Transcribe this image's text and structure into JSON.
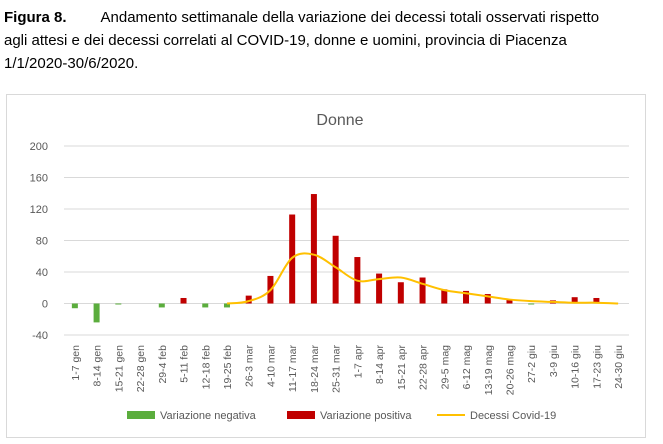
{
  "caption": {
    "figure_label": "Figura 8.",
    "line1": "Andamento settimanale della variazione dei decessi totali osservati rispetto",
    "line2": "agli attesi e dei decessi correlati al COVID-19, donne e uomini, provincia di Piacenza",
    "line3": "1/1/2020-30/6/2020."
  },
  "chart_data": {
    "type": "bar",
    "title": "Donne",
    "xlabel": "",
    "ylabel": "",
    "ylim": [
      -40,
      200
    ],
    "yticks": [
      -40,
      0,
      40,
      80,
      120,
      160,
      200
    ],
    "grid": true,
    "legend_position": "bottom",
    "categories": [
      "1-7 gen",
      "8-14 gen",
      "15-21 gen",
      "22-28 gen",
      "29-4 feb",
      "5-11 feb",
      "12-18 feb",
      "19-25 feb",
      "26-3 mar",
      "4-10 mar",
      "11-17 mar",
      "18-24 mar",
      "25-31 mar",
      "1-7 apr",
      "8-14 apr",
      "15-21 apr",
      "22-28 apr",
      "29-5 mag",
      "6-12 mag",
      "13-19 mag",
      "20-26 mag",
      "27-2 giu",
      "3-9 giu",
      "10-16 giu",
      "17-23 giu",
      "24-30 giu"
    ],
    "series": [
      {
        "name": "Variazione negativa",
        "kind": "bar",
        "color": "#5bad3d",
        "values": [
          -6,
          -24,
          -1,
          0,
          -5,
          0,
          -5,
          -5,
          0,
          0,
          0,
          0,
          0,
          0,
          0,
          0,
          0,
          0,
          0,
          0,
          0,
          -1,
          0,
          0,
          0,
          0
        ]
      },
      {
        "name": "Variazione positiva",
        "kind": "bar",
        "color": "#c00000",
        "values": [
          0,
          0,
          0,
          0,
          0,
          7,
          0,
          0,
          10,
          35,
          113,
          139,
          86,
          59,
          38,
          27,
          33,
          18,
          16,
          12,
          5,
          0,
          4,
          8,
          7,
          0
        ]
      },
      {
        "name": "Decessi Covid-19",
        "kind": "line",
        "color": "#ffc000",
        "values": [
          0,
          0,
          0,
          0,
          0,
          0,
          0,
          0,
          3,
          17,
          58,
          62,
          46,
          29,
          31,
          33,
          25,
          17,
          13,
          9,
          5,
          3,
          2,
          1,
          1,
          0
        ]
      }
    ]
  }
}
